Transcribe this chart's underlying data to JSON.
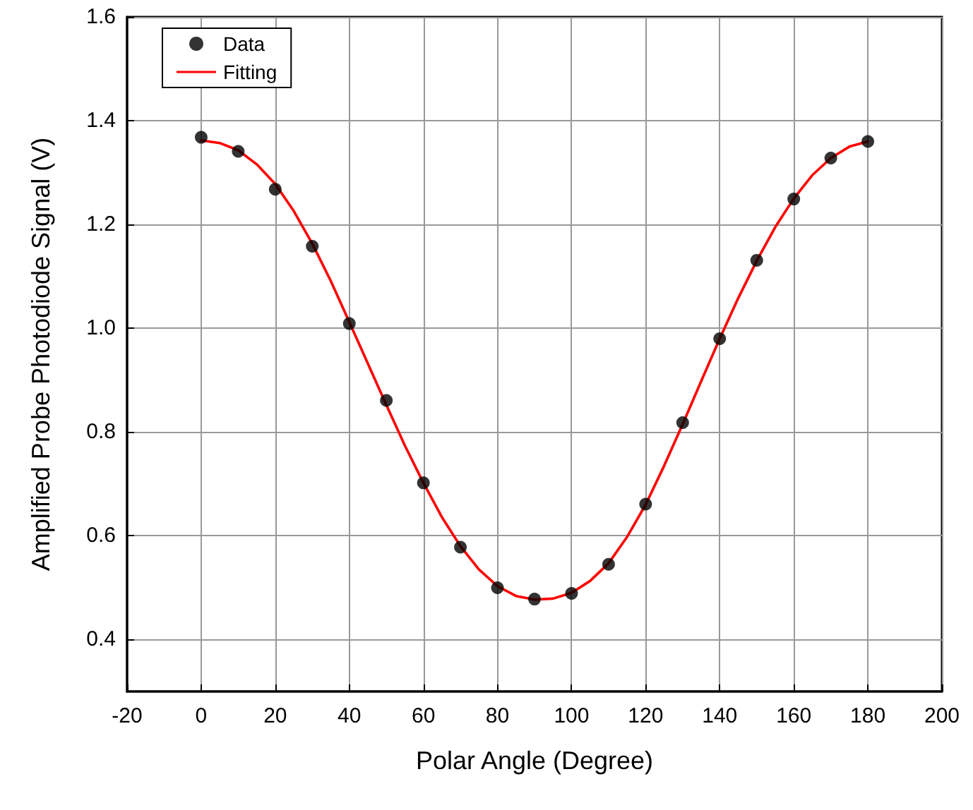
{
  "chart_data": {
    "type": "scatter",
    "xlabel": "Polar Angle (Degree)",
    "ylabel": "Amplified Probe Photodiode Signal (V)",
    "xlim": [
      -20,
      200
    ],
    "xticks": [
      -20,
      0,
      20,
      40,
      60,
      80,
      100,
      120,
      140,
      160,
      180,
      200
    ],
    "ylim": [
      0.3,
      1.6
    ],
    "yticks": [
      0.4,
      0.6,
      0.8,
      {
        "value": 1,
        "label": "1.0"
      },
      1.2,
      1.4,
      1.6
    ],
    "grid": true,
    "legend": "top left",
    "marker": "circle",
    "series": [
      {
        "name": "Data",
        "type": "scatter",
        "color": "#000000",
        "x": [
          0,
          10,
          20,
          30,
          40,
          50,
          60,
          70,
          80,
          90,
          100,
          110,
          120,
          130,
          140,
          150,
          160,
          170,
          180
        ],
        "values": [
          1.368,
          1.341,
          1.268,
          1.158,
          1.009,
          0.861,
          0.702,
          0.578,
          0.5,
          0.478,
          0.489,
          0.545,
          0.661,
          0.818,
          0.98,
          1.131,
          1.249,
          1.328,
          1.36
        ]
      },
      {
        "name": "Fitting",
        "type": "line",
        "marker": "none",
        "line_style": "solid",
        "color": "#ff0000",
        "x": [
          0,
          5,
          10,
          15,
          20,
          25,
          30,
          35,
          40,
          45,
          50,
          55,
          60,
          65,
          70,
          75,
          80,
          85,
          90,
          95,
          100,
          105,
          110,
          115,
          120,
          125,
          130,
          135,
          140,
          145,
          150,
          155,
          160,
          165,
          170,
          175,
          180
        ],
        "values": [
          1.362,
          1.357,
          1.343,
          1.316,
          1.278,
          1.226,
          1.163,
          1.091,
          1.012,
          0.932,
          0.852,
          0.774,
          0.702,
          0.636,
          0.58,
          0.535,
          0.503,
          0.484,
          0.477,
          0.479,
          0.49,
          0.513,
          0.547,
          0.598,
          0.66,
          0.735,
          0.815,
          0.898,
          0.98,
          1.058,
          1.13,
          1.195,
          1.25,
          1.295,
          1.328,
          1.35,
          1.36
        ]
      }
    ]
  }
}
